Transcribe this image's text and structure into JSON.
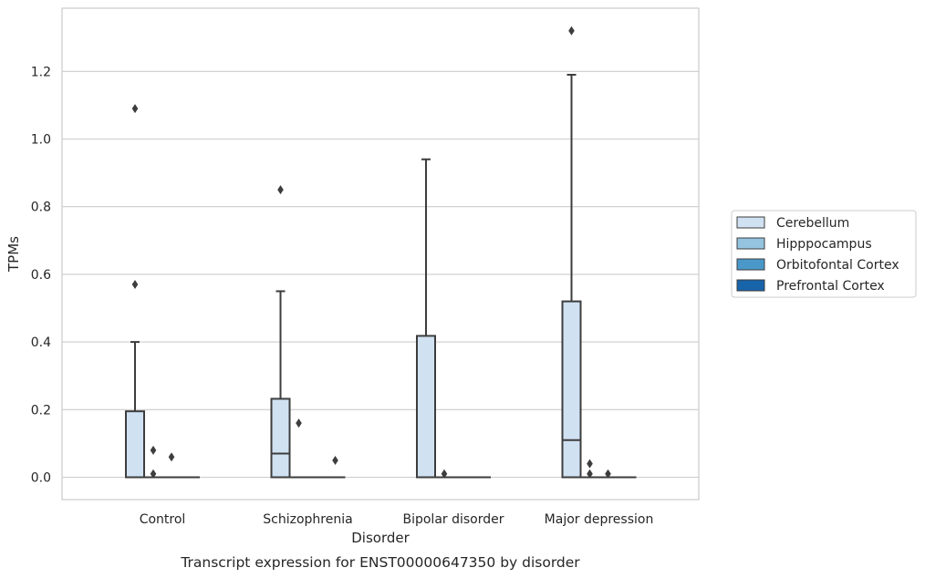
{
  "caption": "Transcript expression for ENST00000647350 by disorder",
  "chart_data": {
    "type": "box",
    "xlabel": "Disorder",
    "ylabel": "TPMs",
    "ylim": [
      -0.065,
      1.39
    ],
    "yticks": [
      0.0,
      0.2,
      0.4,
      0.6,
      0.8,
      1.0,
      1.2
    ],
    "ytick_labels": [
      "0.0",
      "0.2",
      "0.4",
      "0.6",
      "0.8",
      "1.0",
      "1.2"
    ],
    "grid": true,
    "legend_position": "right",
    "categories": [
      "Control",
      "Schizophrenia",
      "Bipolar disorder",
      "Major depression"
    ],
    "hue_order": [
      "Cerebellum",
      "Hipppocampus",
      "Orbitofontal Cortex",
      "Prefrontal Cortex"
    ],
    "hue_colors": [
      "#d0e1f2",
      "#94c4df",
      "#4a98c9",
      "#1764ab"
    ],
    "boxes": [
      {
        "category": "Control",
        "hue": "Cerebellum",
        "q1": 0.0,
        "median": 0.0,
        "q3": 0.195,
        "whisker_low": 0.0,
        "whisker_high": 0.4,
        "fliers": [
          0.57,
          1.09
        ]
      },
      {
        "category": "Control",
        "hue": "Hipppocampus",
        "q1": 0.0,
        "median": 0.0,
        "q3": 0.0,
        "whisker_low": 0.0,
        "whisker_high": 0.0,
        "fliers": [
          0.01,
          0.08
        ]
      },
      {
        "category": "Control",
        "hue": "Orbitofontal Cortex",
        "q1": 0.0,
        "median": 0.0,
        "q3": 0.0,
        "whisker_low": 0.0,
        "whisker_high": 0.0,
        "fliers": [
          0.06
        ]
      },
      {
        "category": "Control",
        "hue": "Prefrontal Cortex",
        "q1": 0.0,
        "median": 0.0,
        "q3": 0.0,
        "whisker_low": 0.0,
        "whisker_high": 0.0,
        "fliers": []
      },
      {
        "category": "Schizophrenia",
        "hue": "Cerebellum",
        "q1": 0.0,
        "median": 0.07,
        "q3": 0.232,
        "whisker_low": 0.0,
        "whisker_high": 0.55,
        "fliers": [
          0.85
        ]
      },
      {
        "category": "Schizophrenia",
        "hue": "Hipppocampus",
        "q1": 0.0,
        "median": 0.0,
        "q3": 0.0,
        "whisker_low": 0.0,
        "whisker_high": 0.0,
        "fliers": [
          0.16
        ]
      },
      {
        "category": "Schizophrenia",
        "hue": "Orbitofontal Cortex",
        "q1": 0.0,
        "median": 0.0,
        "q3": 0.0,
        "whisker_low": 0.0,
        "whisker_high": 0.0,
        "fliers": []
      },
      {
        "category": "Schizophrenia",
        "hue": "Prefrontal Cortex",
        "q1": 0.0,
        "median": 0.0,
        "q3": 0.0,
        "whisker_low": 0.0,
        "whisker_high": 0.0,
        "fliers": [
          0.05
        ]
      },
      {
        "category": "Bipolar disorder",
        "hue": "Cerebellum",
        "q1": 0.0,
        "median": 0.0,
        "q3": 0.418,
        "whisker_low": 0.0,
        "whisker_high": 0.94,
        "fliers": []
      },
      {
        "category": "Bipolar disorder",
        "hue": "Hipppocampus",
        "q1": 0.0,
        "median": 0.0,
        "q3": 0.0,
        "whisker_low": 0.0,
        "whisker_high": 0.0,
        "fliers": [
          0.01
        ]
      },
      {
        "category": "Bipolar disorder",
        "hue": "Orbitofontal Cortex",
        "q1": 0.0,
        "median": 0.0,
        "q3": 0.0,
        "whisker_low": 0.0,
        "whisker_high": 0.0,
        "fliers": []
      },
      {
        "category": "Bipolar disorder",
        "hue": "Prefrontal Cortex",
        "q1": 0.0,
        "median": 0.0,
        "q3": 0.0,
        "whisker_low": 0.0,
        "whisker_high": 0.0,
        "fliers": []
      },
      {
        "category": "Major depression",
        "hue": "Cerebellum",
        "q1": 0.0,
        "median": 0.11,
        "q3": 0.52,
        "whisker_low": 0.0,
        "whisker_high": 1.19,
        "fliers": [
          1.32
        ]
      },
      {
        "category": "Major depression",
        "hue": "Hipppocampus",
        "q1": 0.0,
        "median": 0.0,
        "q3": 0.0,
        "whisker_low": 0.0,
        "whisker_high": 0.0,
        "fliers": [
          0.01,
          0.04
        ]
      },
      {
        "category": "Major depression",
        "hue": "Orbitofontal Cortex",
        "q1": 0.0,
        "median": 0.0,
        "q3": 0.0,
        "whisker_low": 0.0,
        "whisker_high": 0.0,
        "fliers": [
          0.01
        ]
      },
      {
        "category": "Major depression",
        "hue": "Prefrontal Cortex",
        "q1": 0.0,
        "median": 0.0,
        "q3": 0.0,
        "whisker_low": 0.0,
        "whisker_high": 0.0,
        "fliers": []
      }
    ]
  }
}
